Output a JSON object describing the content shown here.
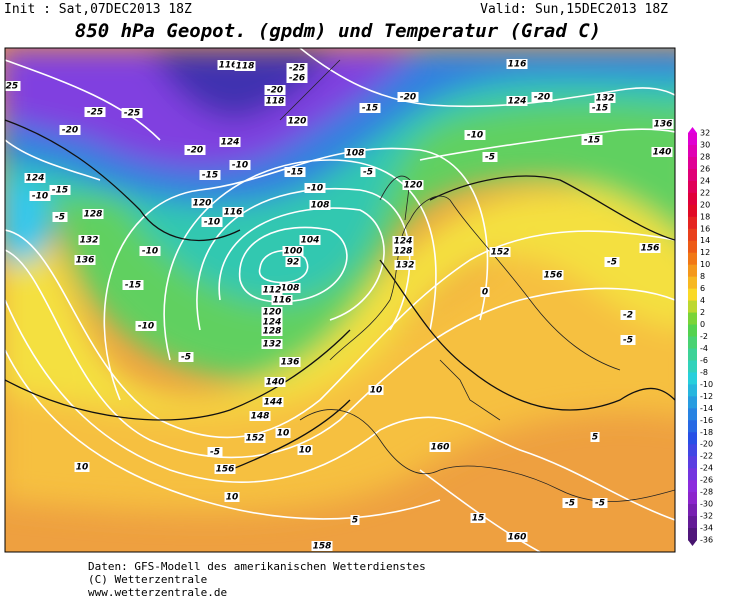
{
  "header": {
    "init": "Init : Sat,07DEC2013 18Z",
    "valid": "Valid: Sun,15DEC2013 18Z",
    "title": "850 hPa Geopot. (gpdm) und Temperatur (Grad C)"
  },
  "colorbar": {
    "labels": [
      "32",
      "30",
      "28",
      "26",
      "24",
      "22",
      "20",
      "18",
      "16",
      "14",
      "12",
      "10",
      "8",
      "6",
      "4",
      "2",
      "0",
      "-2",
      "-4",
      "-6",
      "-8",
      "-10",
      "-12",
      "-14",
      "-16",
      "-18",
      "-20",
      "-22",
      "-24",
      "-26",
      "-28",
      "-30",
      "-32",
      "-34",
      "-36"
    ]
  },
  "map": {
    "contour_labels": [
      "-25",
      "-20",
      "-25",
      "-25",
      "-20",
      "-15",
      "-10",
      "116",
      "118",
      "-25",
      "-26",
      "-20",
      "118",
      "120",
      "124",
      "-15",
      "-10",
      "108",
      "-5",
      "120",
      "-15",
      "-20",
      "116",
      "-20",
      "124",
      "132",
      "-15",
      "-10",
      "-5",
      "-15",
      "136",
      "140",
      "124",
      "-15",
      "-10",
      "-5",
      "128",
      "120",
      "116",
      "-10",
      "108",
      "132",
      "136",
      "-10",
      "-15",
      "-10",
      "-5",
      "100",
      "92",
      "104",
      "108",
      "112",
      "116",
      "120",
      "124",
      "128",
      "132",
      "136",
      "140",
      "144",
      "148",
      "152",
      "156",
      "124",
      "128",
      "132",
      "152",
      "156",
      "156",
      "-5",
      "0",
      "-2",
      "-5",
      "10",
      "10",
      "10",
      "-5",
      "10",
      "10",
      "160",
      "5",
      "5",
      "-5",
      "-5",
      "15",
      "160",
      "158"
    ]
  },
  "footer": {
    "line1": "Daten: GFS-Modell des amerikanischen Wetterdienstes",
    "line2": "(C) Wetterzentrale",
    "line3": "www.wetterzentrale.de"
  }
}
